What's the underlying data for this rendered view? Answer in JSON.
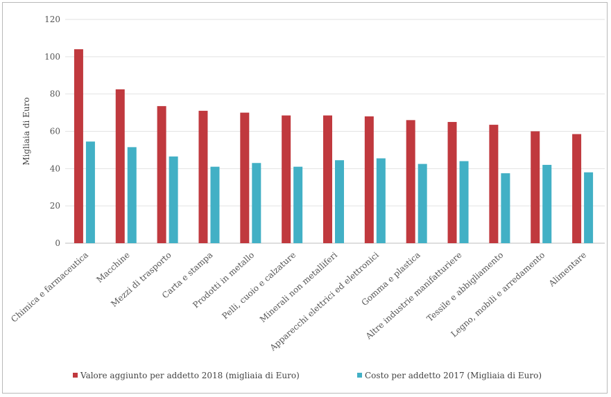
{
  "chart_data": {
    "type": "bar",
    "title": "",
    "xlabel": "",
    "ylabel": "Migliaia di Euro",
    "ylim": [
      0,
      120
    ],
    "yticks": [
      0,
      20,
      40,
      60,
      80,
      100,
      120
    ],
    "grid": true,
    "legend_position": "bottom",
    "categories": [
      "Chimica e farmaceutica",
      "Macchine",
      "Mezzi di trasporto",
      "Carta e stampa",
      "Prodotti in metallo",
      "Pelli, cuoio e calzature",
      "Minerali non metalliferi",
      "Apparecchi elettrici ed elettronici",
      "Gomma e plastica",
      "Altre industrie manifatturiere",
      "Tessile e abbigliamento",
      "Legno, mobili e arredamento",
      "Alimentare"
    ],
    "series": [
      {
        "name": "Valore aggiunto per addetto 2018 (migliaia di Euro)",
        "color": "#c0393e",
        "values": [
          104,
          82.5,
          73.5,
          71,
          70,
          68.5,
          68.5,
          68,
          66,
          65,
          63.5,
          60,
          58.5
        ]
      },
      {
        "name": "Costo per addetto 2017 (Migliaia di Euro)",
        "color": "#42b0c5",
        "values": [
          54.5,
          51.5,
          46.5,
          41,
          43,
          41,
          44.5,
          45.5,
          42.5,
          44,
          37.5,
          42,
          38
        ]
      }
    ]
  }
}
